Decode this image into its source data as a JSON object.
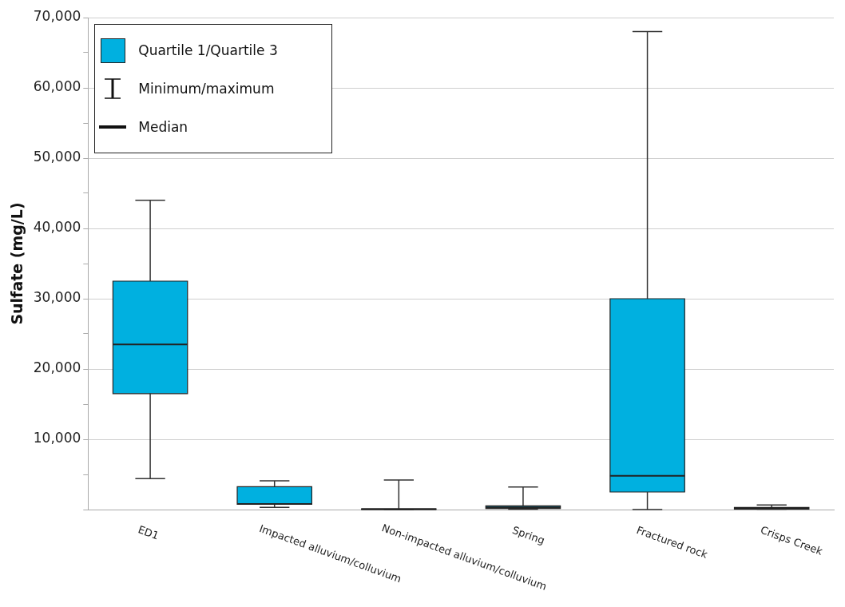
{
  "chart_data": {
    "type": "box",
    "ylabel": "Sulfate (mg/L)",
    "categories": [
      "ED1",
      "Impacted alluvium/colluvium",
      "Non-impacted alluvium/colluvium",
      "Spring",
      "Fractured rock",
      "Crisps Creek"
    ],
    "series": [
      {
        "name": "Quartile 1/Quartile 3",
        "color": "#00b0e0",
        "boxes": [
          {
            "low": 4400,
            "q1": 16500,
            "median": 23500,
            "q3": 32500,
            "high": 44000
          },
          {
            "low": 300,
            "q1": 750,
            "median": 800,
            "q3": 3250,
            "high": 4100
          },
          {
            "low": 0,
            "q1": 0,
            "median": 50,
            "q3": 100,
            "high": 4200
          },
          {
            "low": 50,
            "q1": 150,
            "median": 300,
            "q3": 530,
            "high": 3200
          },
          {
            "low": 0,
            "q1": 2500,
            "median": 4800,
            "q3": 30000,
            "high": 68000
          },
          {
            "low": 50,
            "q1": 80,
            "median": 200,
            "q3": 300,
            "high": 640
          }
        ]
      }
    ],
    "annotations": [
      "Minimum/maximum",
      "Median"
    ],
    "ylim": [
      0,
      70000
    ],
    "yticks": [
      {
        "value": 0,
        "label": null
      },
      {
        "value": 5000,
        "label": null
      },
      {
        "value": 10000,
        "label": "10,000"
      },
      {
        "value": 15000,
        "label": null
      },
      {
        "value": 20000,
        "label": "20,000"
      },
      {
        "value": 25000,
        "label": null
      },
      {
        "value": 30000,
        "label": "30,000"
      },
      {
        "value": 35000,
        "label": null
      },
      {
        "value": 40000,
        "label": "40,000"
      },
      {
        "value": 45000,
        "label": null
      },
      {
        "value": 50000,
        "label": "50,000"
      },
      {
        "value": 55000,
        "label": null
      },
      {
        "value": 60000,
        "label": "60,000"
      },
      {
        "value": 65000,
        "label": null
      },
      {
        "value": 70000,
        "label": "70,000"
      }
    ],
    "grid": "y",
    "legend": "top left"
  }
}
